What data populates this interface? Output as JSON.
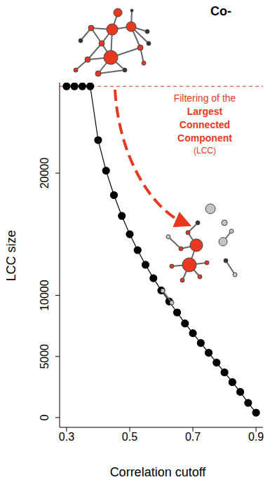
{
  "chart_data": {
    "type": "line",
    "title": "Co-",
    "x_label": "Correlation cutoff",
    "y_label": "LCC size",
    "x": [
      0.3,
      0.325,
      0.35,
      0.375,
      0.4,
      0.425,
      0.45,
      0.475,
      0.5,
      0.525,
      0.55,
      0.575,
      0.6,
      0.625,
      0.65,
      0.675,
      0.7,
      0.725,
      0.75,
      0.775,
      0.8,
      0.825,
      0.85,
      0.875,
      0.9
    ],
    "values": [
      27100,
      27100,
      27100,
      27100,
      22700,
      20200,
      18200,
      16500,
      15000,
      13700,
      12500,
      11400,
      10400,
      9500,
      8600,
      7700,
      6900,
      6100,
      5300,
      4500,
      3700,
      2900,
      2100,
      1200,
      400
    ],
    "color": "#000000",
    "marker": "circle",
    "xlim": [
      0.278,
      0.922
    ],
    "xticks": [
      0.3,
      0.5,
      0.7,
      0.9
    ],
    "ylim": [
      -800,
      27400
    ],
    "yticks": [
      0,
      5000,
      10000,
      20000
    ],
    "reference_line": {
      "value": 27100,
      "color": "#e8391e",
      "line_style": "dashed"
    },
    "annotation": [
      "Filtering of the",
      "Largest",
      "Connected",
      "Component",
      "(LCC)"
    ],
    "annotation_color": "#e8391e"
  }
}
